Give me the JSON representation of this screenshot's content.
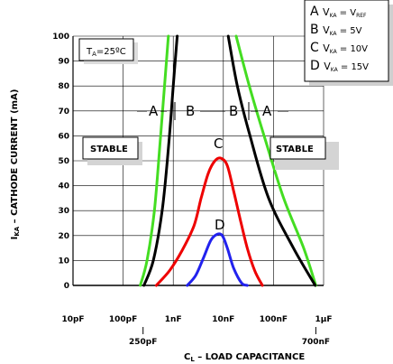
{
  "chart_data": {
    "type": "line",
    "xlabel": "C",
    "xlabel_sub": "L",
    "xlabel_rest": " – LOAD CAPACITANCE",
    "ylabel": "I",
    "ylabel_sub": "KA",
    "ylabel_rest": " – CATHODE CURRENT (mA)",
    "y_ticks": [
      "0",
      "10",
      "20",
      "30",
      "40",
      "50",
      "60",
      "70",
      "80",
      "90",
      "100"
    ],
    "x_ticks": [
      "10pF",
      "100pF",
      "1nF",
      "10nF",
      "100nF",
      "1µF"
    ],
    "x_extra_ticks": [
      "250pF",
      "700nF"
    ],
    "ylim": [
      0,
      100
    ],
    "xlim_decades": [
      -11,
      -6
    ],
    "x_scale": "log",
    "grid": true,
    "temperature_label": "T",
    "temperature_sub": "A",
    "temperature_rest": "=25ºC",
    "stable_left": "STABLE",
    "stable_right": "STABLE",
    "region_labels": {
      "A_left": "A",
      "B_left": "B",
      "B_right": "B",
      "A_right": "A",
      "C": "C",
      "D": "D"
    },
    "legend": [
      {
        "letter": "A",
        "v": "V",
        "v_sub": "KA",
        "eq": " = V",
        "eq_sub": "REF",
        "value": ""
      },
      {
        "letter": "B",
        "v": "V",
        "v_sub": "KA",
        "eq": " = 5V",
        "eq_sub": "",
        "value": ""
      },
      {
        "letter": "C",
        "v": "V",
        "v_sub": "KA",
        "eq": " = 10V",
        "eq_sub": "",
        "value": ""
      },
      {
        "letter": "D",
        "v": "V",
        "v_sub": "KA",
        "eq": " = 15V",
        "eq_sub": "",
        "value": ""
      }
    ],
    "series": [
      {
        "key": "A",
        "color": "#44dd22",
        "left": [
          [
            2.2e-10,
            0
          ],
          [
            3e-10,
            10
          ],
          [
            4.2e-10,
            30
          ],
          [
            5.6e-10,
            60
          ],
          [
            7e-10,
            85
          ],
          [
            8e-10,
            100
          ]
        ],
        "right": [
          [
            1.8e-08,
            100
          ],
          [
            3.3e-08,
            80
          ],
          [
            6.5e-08,
            60
          ],
          [
            1.6e-07,
            35
          ],
          [
            4e-07,
            15
          ],
          [
            7e-07,
            0
          ]
        ]
      },
      {
        "key": "B",
        "color": "#000000",
        "left": [
          [
            2.6e-10,
            0
          ],
          [
            4e-10,
            10
          ],
          [
            6e-10,
            30
          ],
          [
            8e-10,
            55
          ],
          [
            1e-09,
            80
          ],
          [
            1.2e-09,
            100
          ]
        ],
        "right": [
          [
            1.25e-08,
            100
          ],
          [
            1.9e-08,
            80
          ],
          [
            3.4e-08,
            60
          ],
          [
            8e-08,
            35
          ],
          [
            2.5e-07,
            15
          ],
          [
            6.8e-07,
            0
          ]
        ]
      },
      {
        "key": "C",
        "color": "#ee0000",
        "points": [
          [
            4.6e-10,
            0
          ],
          [
            8.5e-10,
            6
          ],
          [
            1.5e-09,
            14
          ],
          [
            2.6e-09,
            24
          ],
          [
            3.6e-09,
            35
          ],
          [
            5e-09,
            45
          ],
          [
            6.8e-09,
            50
          ],
          [
            9e-09,
            51
          ],
          [
            1.2e-08,
            48
          ],
          [
            1.6e-08,
            38
          ],
          [
            2.2e-08,
            26
          ],
          [
            3e-08,
            15
          ],
          [
            4.2e-08,
            6
          ],
          [
            6e-08,
            0
          ]
        ]
      },
      {
        "key": "D",
        "color": "#2222ee",
        "points": [
          [
            1.9e-09,
            0
          ],
          [
            2.8e-09,
            4
          ],
          [
            4e-09,
            11
          ],
          [
            5.6e-09,
            18
          ],
          [
            7.5e-09,
            20.5
          ],
          [
            9.5e-09,
            20
          ],
          [
            1.2e-08,
            15
          ],
          [
            1.6e-08,
            7
          ],
          [
            2.3e-08,
            1
          ],
          [
            3e-08,
            0
          ]
        ]
      }
    ]
  }
}
